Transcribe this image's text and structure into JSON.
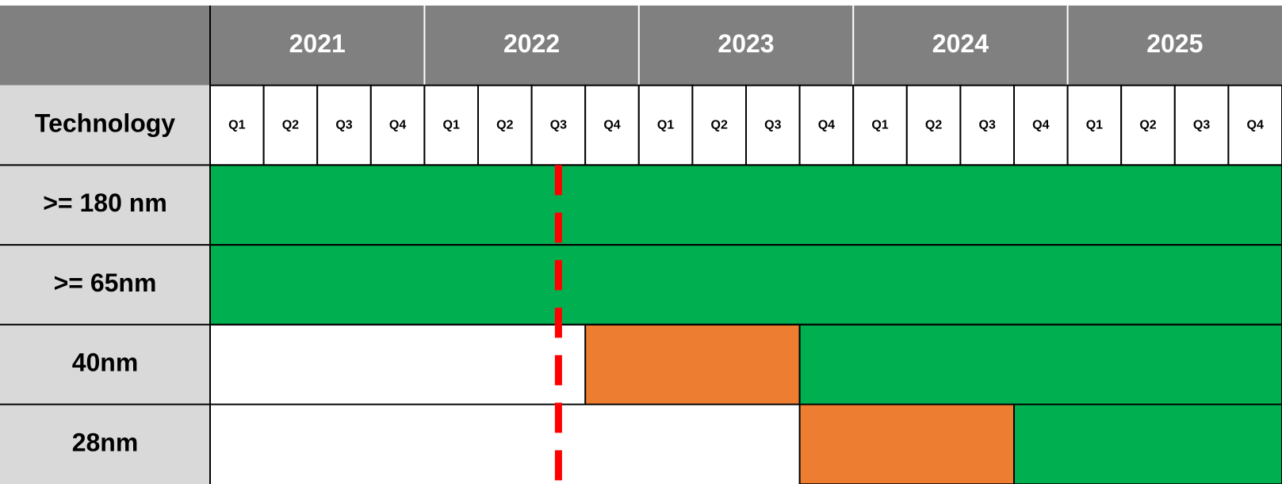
{
  "header": {
    "row_header": "Technology",
    "years": [
      {
        "label": "2021",
        "quarters": [
          "Q1",
          "Q2",
          "Q3",
          "Q4"
        ]
      },
      {
        "label": "2022",
        "quarters": [
          "Q1",
          "Q2",
          "Q3",
          "Q4"
        ]
      },
      {
        "label": "2023",
        "quarters": [
          "Q1",
          "Q2",
          "Q3",
          "Q4"
        ]
      },
      {
        "label": "2024",
        "quarters": [
          "Q1",
          "Q2",
          "Q3",
          "Q4"
        ]
      },
      {
        "label": "2025",
        "quarters": [
          "Q1",
          "Q2",
          "Q3",
          "Q4"
        ]
      }
    ]
  },
  "rows": [
    ">= 180 nm",
    ">= 65nm",
    "40nm",
    "28nm"
  ]
}
